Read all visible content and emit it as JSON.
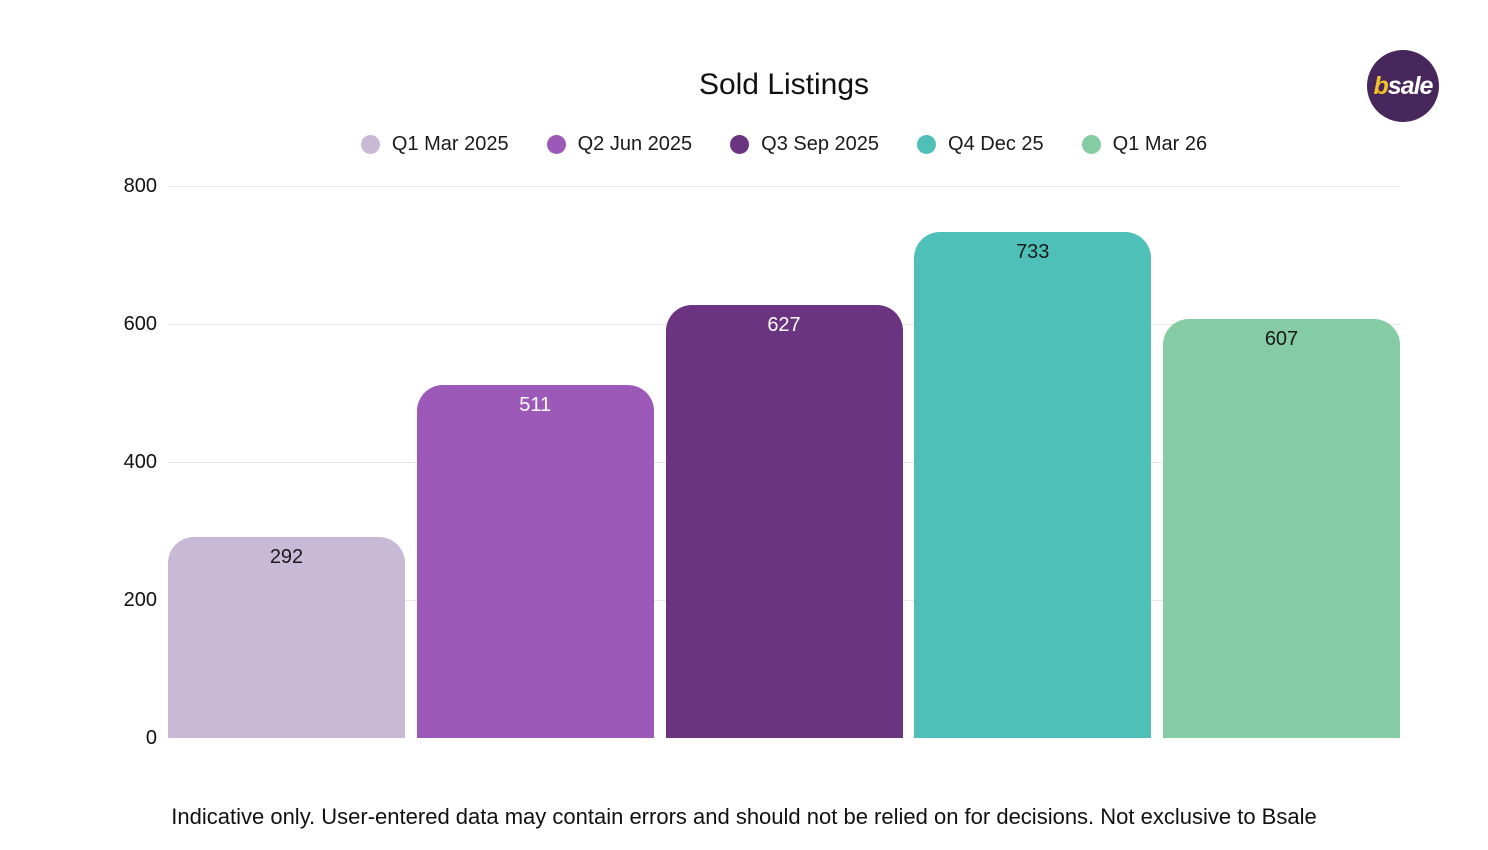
{
  "title": "Sold Listings",
  "logo": {
    "prefix": "b",
    "suffix": "sale"
  },
  "footer": "Indicative only. User-entered data may contain errors and should not be relied on for decisions. Not exclusive to Bsale",
  "chart_data": {
    "type": "bar",
    "title": "Sold Listings",
    "categories": [
      "Q1 Mar 2025",
      "Q2 Jun 2025",
      "Q3 Sep 2025",
      "Q4 Dec 25",
      "Q1 Mar 26"
    ],
    "values": [
      292,
      511,
      627,
      733,
      607
    ],
    "bar_colors": [
      "#c8b9d6",
      "#9c59b7",
      "#6a3480",
      "#4fc0b7",
      "#85cba3"
    ],
    "value_label_colors": [
      "#1a1a1a",
      "#ffffff",
      "#ffffff",
      "#1a1a1a",
      "#1a1a1a"
    ],
    "xlabel": "",
    "ylabel": "",
    "ylim": [
      0,
      800
    ],
    "yticks": [
      0,
      200,
      400,
      600,
      800
    ],
    "grid": true,
    "gridline_color": "#e8e8e8",
    "legend_position": "top"
  }
}
